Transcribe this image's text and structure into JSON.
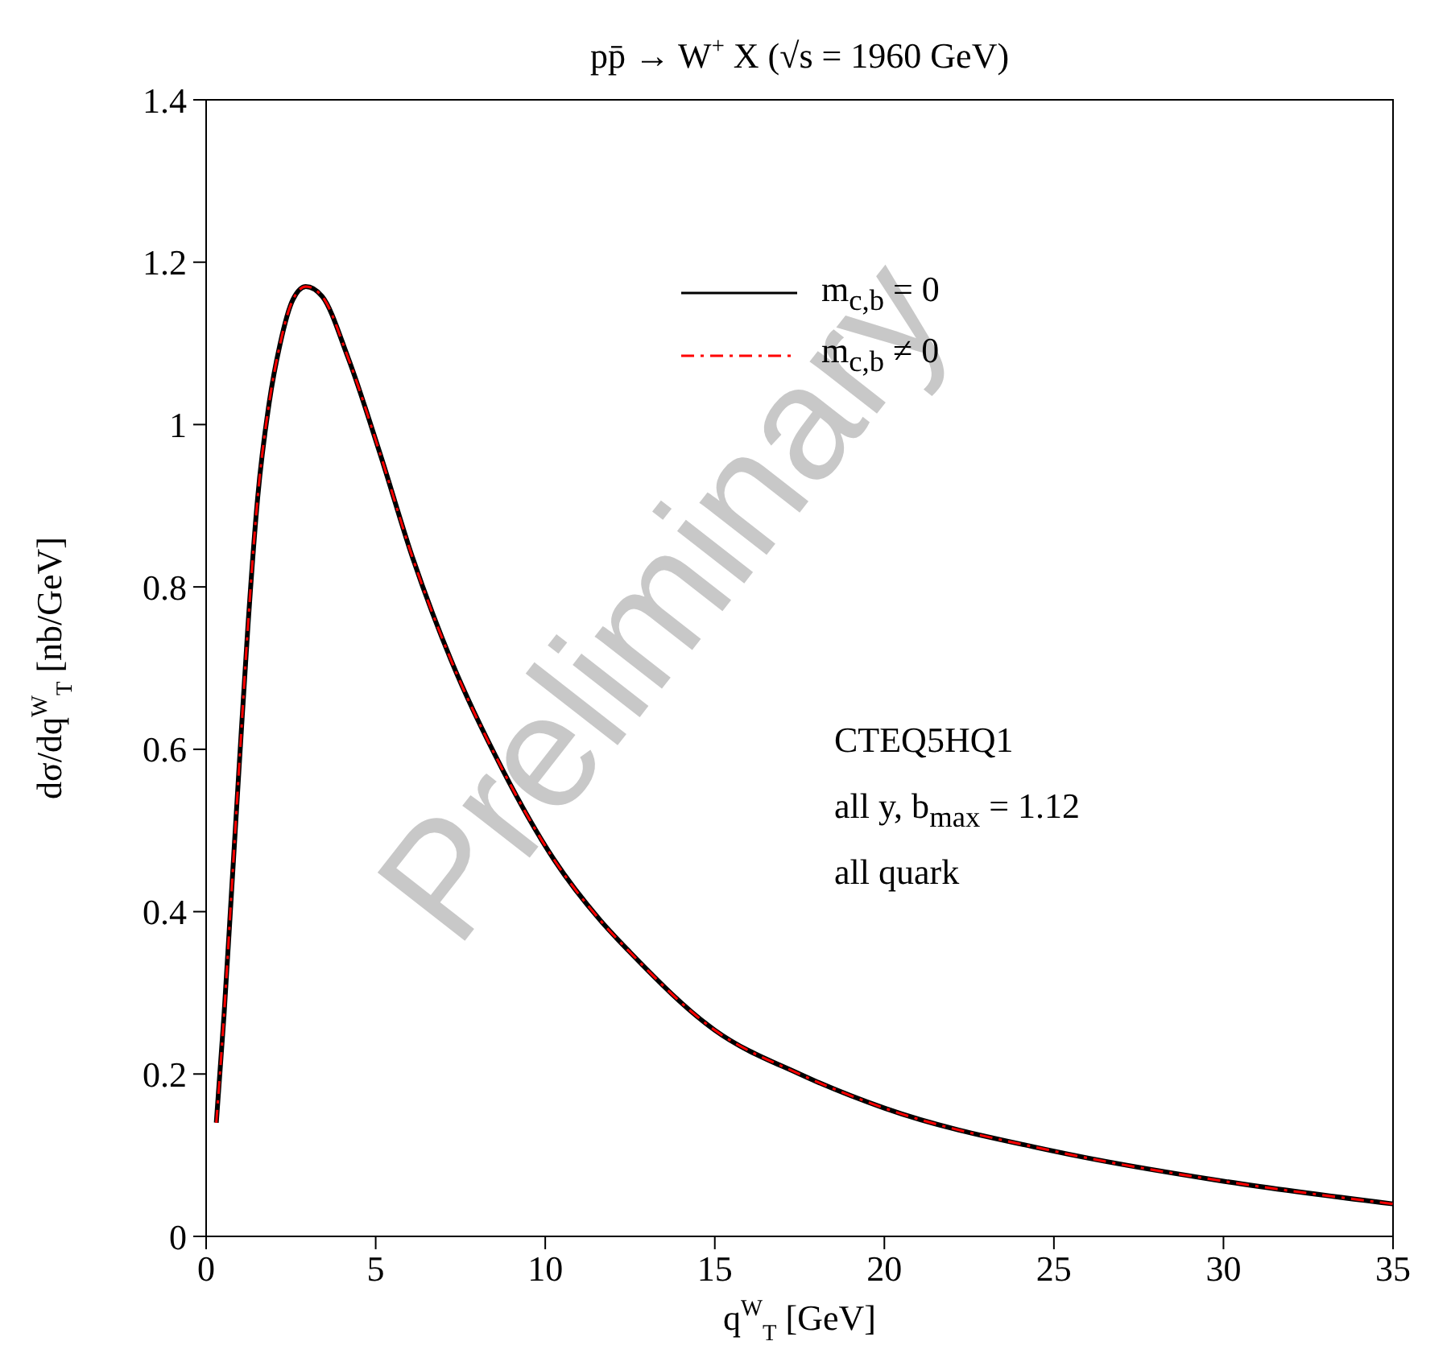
{
  "chart_data": {
    "type": "line",
    "title": "pp̄ → W$^{+}$ X   (√s = 1960 GeV)",
    "xlabel": "q$^{W}$$_{T}$ [GeV]",
    "ylabel": "dσ/dq$^{W}$$_{T}$ [nb/GeV]",
    "x": [
      0.3,
      0.53,
      0.76,
      0.99,
      1.23,
      1.52,
      1.86,
      2.18,
      2.56,
      2.94,
      3.42,
      4.18,
      5.13,
      6.08,
      7.22,
      8.74,
      10.26,
      11.63,
      12.5,
      15,
      17.5,
      20,
      25,
      30,
      35
    ],
    "series": [
      {
        "name": "m$_{c,b}$ = 0",
        "color": "#000000",
        "line_style": "solid",
        "values": [
          0.14,
          0.274,
          0.432,
          0.59,
          0.75,
          0.91,
          1.027,
          1.099,
          1.154,
          1.17,
          1.158,
          1.083,
          0.964,
          0.837,
          0.71,
          0.575,
          0.464,
          0.389,
          0.35,
          0.254,
          0.2,
          0.158,
          0.105,
          0.068,
          0.04
        ]
      },
      {
        "name": "m$_{c,b}$ ≠ 0",
        "color": "#ff0000",
        "line_style": "dashed",
        "values": [
          0.14,
          0.274,
          0.432,
          0.59,
          0.75,
          0.91,
          1.027,
          1.099,
          1.154,
          1.17,
          1.158,
          1.083,
          0.964,
          0.837,
          0.71,
          0.575,
          0.464,
          0.389,
          0.35,
          0.254,
          0.2,
          0.158,
          0.105,
          0.068,
          0.04
        ]
      }
    ],
    "xlim": [
      0,
      35
    ],
    "xticks": [
      0,
      5,
      10,
      15,
      20,
      25,
      30,
      35
    ],
    "ylim": [
      0,
      1.4
    ],
    "yticks": [
      0,
      0.2,
      0.4,
      0.6,
      0.8,
      1,
      1.2,
      1.4
    ],
    "legend": "top right",
    "grid": false,
    "marker": "none",
    "annotations": [
      "CTEQ5HQ1",
      "all y, b$_{max}$ = 1.12",
      "all quark",
      "Preliminary"
    ]
  }
}
